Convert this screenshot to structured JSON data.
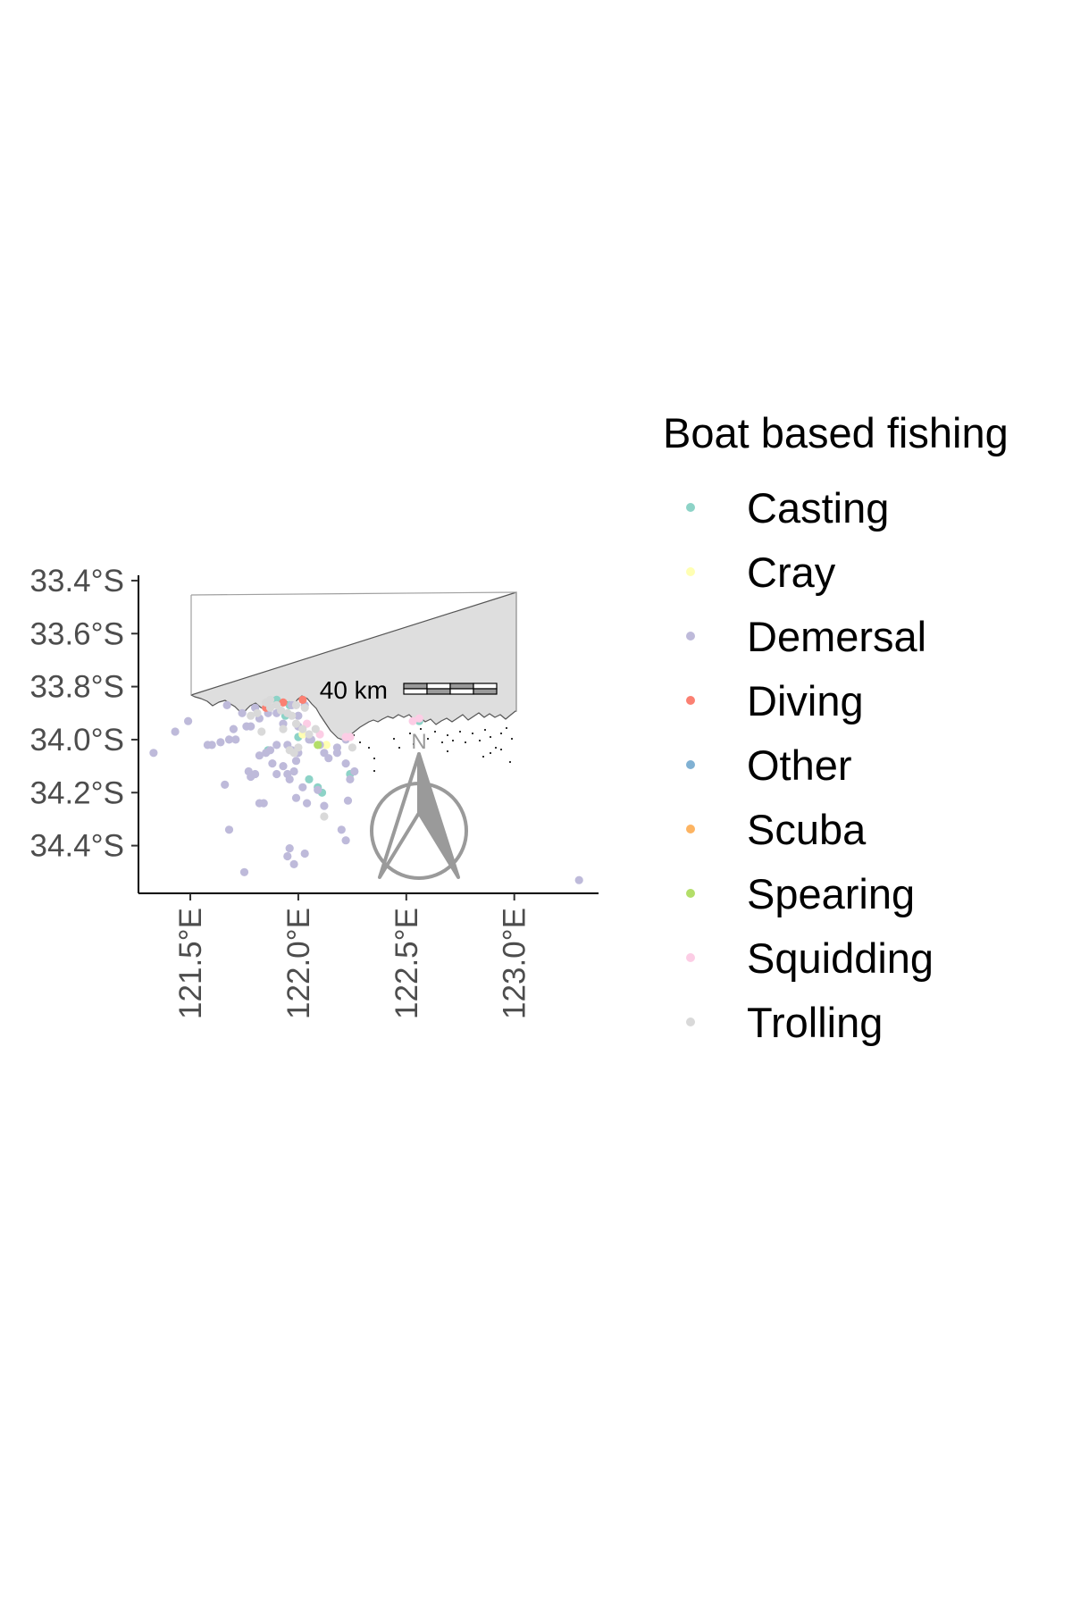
{
  "chart_data": {
    "type": "scatter",
    "title": "",
    "xlabel": "",
    "ylabel": "",
    "xlim": [
      121.26,
      123.39
    ],
    "ylim": [
      -34.58,
      -33.38
    ],
    "x_ticks": [
      {
        "value": 121.5,
        "label": "121.5°E"
      },
      {
        "value": 122.0,
        "label": "122.0°E"
      },
      {
        "value": 122.5,
        "label": "122.5°E"
      },
      {
        "value": 123.0,
        "label": "123.0°E"
      }
    ],
    "y_ticks": [
      {
        "value": -33.4,
        "label": "33.4°S"
      },
      {
        "value": -33.6,
        "label": "33.6°S"
      },
      {
        "value": -33.8,
        "label": "33.8°S"
      },
      {
        "value": -34.0,
        "label": "34.0°S"
      },
      {
        "value": -34.2,
        "label": "34.2°S"
      },
      {
        "value": -34.4,
        "label": "34.4°S"
      }
    ],
    "grid": false,
    "legend_position": "right",
    "legend_title": "Boat based fishing",
    "scale_bar_label": "40 km",
    "north_arrow_label": "N",
    "land_color": "#dedede",
    "series": [
      {
        "name": "Casting",
        "color": "#8dd3c7",
        "points": [
          [
            121.9,
            -33.85
          ],
          [
            121.96,
            -33.87
          ],
          [
            121.94,
            -33.91
          ],
          [
            122.05,
            -34.15
          ],
          [
            122.09,
            -34.18
          ],
          [
            122.11,
            -34.2
          ],
          [
            122.24,
            -34.13
          ],
          [
            122.56,
            -33.93
          ],
          [
            121.86,
            -34.04
          ],
          [
            122.0,
            -33.99
          ]
        ]
      },
      {
        "name": "Cray",
        "color": "#ffffb3",
        "points": [
          [
            122.02,
            -33.98
          ],
          [
            122.13,
            -34.02
          ]
        ]
      },
      {
        "name": "Demersal",
        "color": "#bebada",
        "points": [
          [
            121.33,
            -34.05
          ],
          [
            121.43,
            -33.97
          ],
          [
            121.49,
            -33.93
          ],
          [
            121.58,
            -34.02
          ],
          [
            121.6,
            -34.02
          ],
          [
            121.64,
            -34.01
          ],
          [
            121.67,
            -33.87
          ],
          [
            121.68,
            -34.0
          ],
          [
            121.7,
            -33.96
          ],
          [
            121.71,
            -34.0
          ],
          [
            121.66,
            -34.17
          ],
          [
            121.68,
            -34.34
          ],
          [
            121.75,
            -34.5
          ],
          [
            121.76,
            -33.95
          ],
          [
            121.77,
            -34.12
          ],
          [
            121.78,
            -34.14
          ],
          [
            121.8,
            -34.13
          ],
          [
            121.82,
            -34.06
          ],
          [
            121.85,
            -34.05
          ],
          [
            121.87,
            -34.04
          ],
          [
            121.88,
            -34.09
          ],
          [
            121.9,
            -34.02
          ],
          [
            121.93,
            -34.1
          ],
          [
            121.95,
            -34.13
          ],
          [
            121.96,
            -34.15
          ],
          [
            121.98,
            -34.12
          ],
          [
            121.99,
            -34.08
          ],
          [
            121.97,
            -34.04
          ],
          [
            121.95,
            -34.02
          ],
          [
            121.99,
            -34.22
          ],
          [
            122.02,
            -34.18
          ],
          [
            122.04,
            -34.24
          ],
          [
            121.82,
            -34.24
          ],
          [
            121.84,
            -34.24
          ],
          [
            121.95,
            -34.44
          ],
          [
            121.96,
            -34.41
          ],
          [
            121.98,
            -34.47
          ],
          [
            122.03,
            -34.43
          ],
          [
            122.09,
            -34.19
          ],
          [
            122.12,
            -34.25
          ],
          [
            122.14,
            -34.07
          ],
          [
            122.18,
            -34.05
          ],
          [
            122.18,
            -34.03
          ],
          [
            122.2,
            -34.34
          ],
          [
            122.22,
            -34.38
          ],
          [
            122.23,
            -34.23
          ],
          [
            122.24,
            -34.15
          ],
          [
            122.26,
            -34.12
          ],
          [
            122.22,
            -34.09
          ],
          [
            122.1,
            -34.02
          ],
          [
            122.12,
            -34.05
          ],
          [
            122.06,
            -34.0
          ],
          [
            122.0,
            -33.95
          ],
          [
            121.93,
            -33.94
          ],
          [
            121.9,
            -33.9
          ],
          [
            121.86,
            -33.9
          ],
          [
            121.82,
            -33.92
          ],
          [
            121.8,
            -33.88
          ],
          [
            121.97,
            -33.87
          ],
          [
            122.03,
            -33.87
          ],
          [
            122.0,
            -33.91
          ],
          [
            122.05,
            -34.0
          ],
          [
            121.74,
            -33.9
          ],
          [
            121.78,
            -33.95
          ],
          [
            121.9,
            -34.13
          ],
          [
            122.0,
            -34.05
          ],
          [
            122.22,
            -34.0
          ],
          [
            123.3,
            -34.53
          ]
        ]
      },
      {
        "name": "Diving",
        "color": "#fb8072",
        "points": [
          [
            122.02,
            -33.85
          ],
          [
            121.93,
            -33.86
          ],
          [
            121.85,
            -33.88
          ]
        ]
      },
      {
        "name": "Other",
        "color": "#80b1d3",
        "points": []
      },
      {
        "name": "Scuba",
        "color": "#fdb462",
        "points": []
      },
      {
        "name": "Spearing",
        "color": "#b3de69",
        "points": [
          [
            122.09,
            -34.02
          ]
        ]
      },
      {
        "name": "Squidding",
        "color": "#fccde5",
        "points": [
          [
            122.22,
            -33.99
          ],
          [
            122.24,
            -33.99
          ],
          [
            122.1,
            -33.98
          ],
          [
            122.56,
            -33.92
          ],
          [
            122.53,
            -33.93
          ],
          [
            122.04,
            -33.94
          ]
        ]
      },
      {
        "name": "Trolling",
        "color": "#d9d9d9",
        "points": [
          [
            121.81,
            -33.9
          ],
          [
            121.85,
            -33.86
          ],
          [
            121.87,
            -33.85
          ],
          [
            121.87,
            -33.88
          ],
          [
            121.9,
            -33.87
          ],
          [
            121.92,
            -33.89
          ],
          [
            121.95,
            -33.9
          ],
          [
            121.97,
            -33.91
          ],
          [
            121.99,
            -33.87
          ],
          [
            121.99,
            -33.94
          ],
          [
            122.02,
            -33.96
          ],
          [
            122.03,
            -33.88
          ],
          [
            121.78,
            -33.91
          ],
          [
            121.83,
            -33.97
          ],
          [
            122.12,
            -34.29
          ],
          [
            121.96,
            -34.04
          ],
          [
            121.98,
            -34.05
          ],
          [
            122.0,
            -34.03
          ],
          [
            122.05,
            -33.98
          ],
          [
            122.25,
            -34.03
          ],
          [
            122.08,
            -33.96
          ],
          [
            121.93,
            -33.96
          ]
        ]
      }
    ]
  }
}
